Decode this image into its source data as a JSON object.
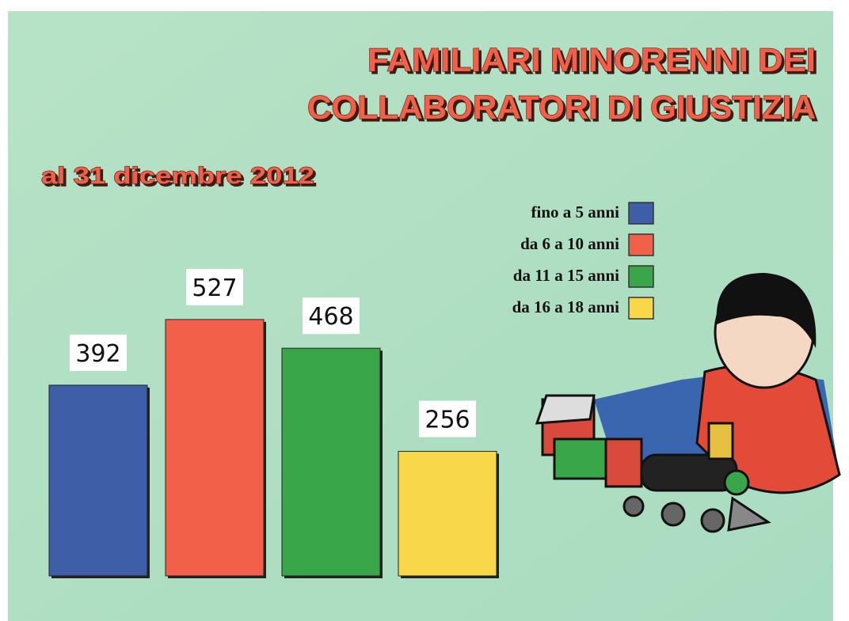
{
  "chart_data": {
    "type": "bar",
    "title": [
      "FAMILIARI  MINORENNI DEI",
      "COLLABORATORI DI GIUSTIZIA"
    ],
    "subtitle": "al 31 dicembre 2012",
    "categories": [
      "fino a 5 anni",
      "da 6 a 10 anni",
      "da 11 a 15 anni",
      "da 16 a 18 anni"
    ],
    "values": [
      392,
      527,
      468,
      256
    ],
    "colors": [
      "#3f5ea8",
      "#f2604a",
      "#3aa64a",
      "#f8d848"
    ]
  }
}
